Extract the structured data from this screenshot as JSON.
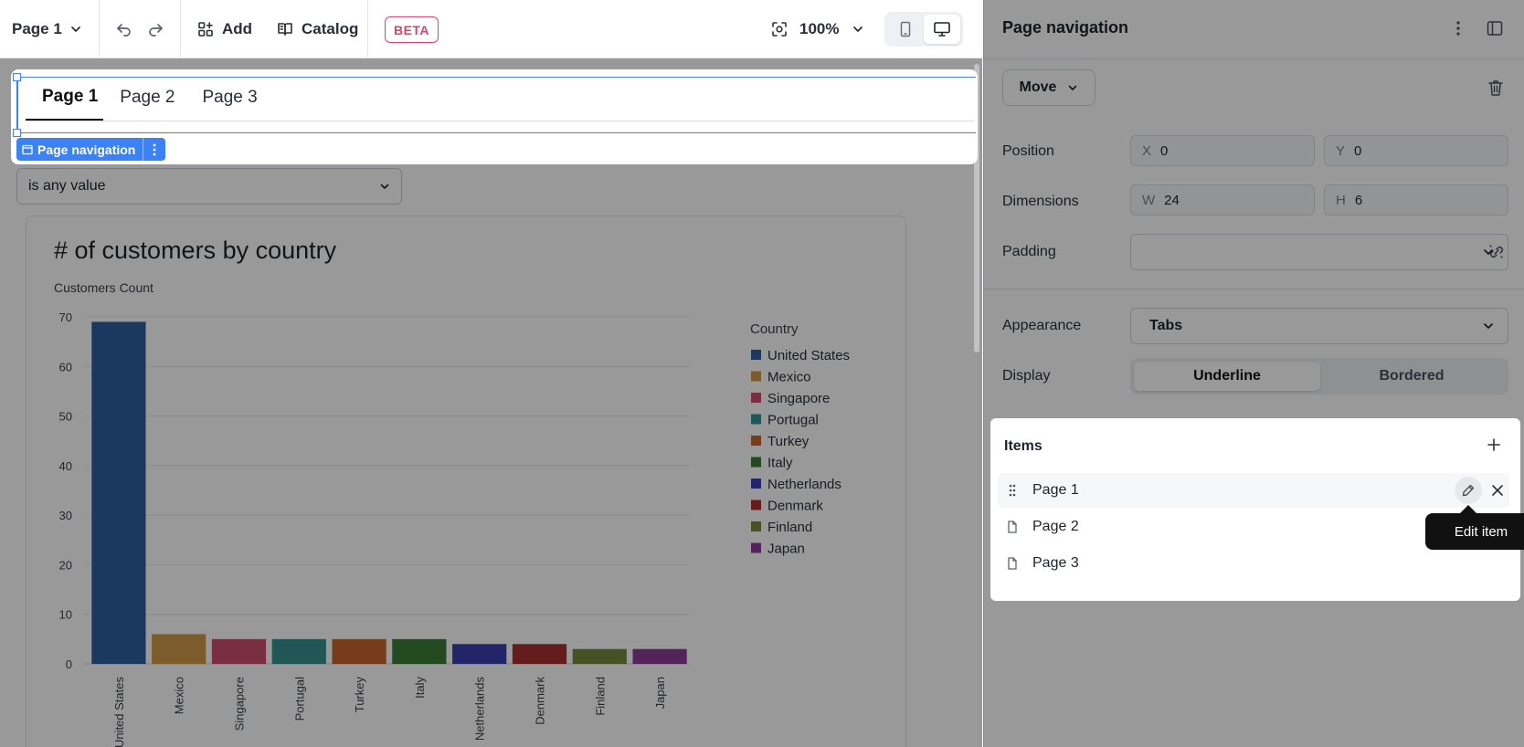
{
  "toolbar": {
    "page_selector": "Page 1",
    "add_label": "Add",
    "catalog_label": "Catalog",
    "beta_badge": "BETA",
    "zoom": "100%"
  },
  "canvas": {
    "page_nav": {
      "tabs": [
        "Page 1",
        "Page 2",
        "Page 3"
      ],
      "active_tab": "Page 1",
      "component_label": "Page navigation"
    },
    "filter": {
      "value": "is any value"
    },
    "chart_card": {
      "title": "# of customers by country"
    }
  },
  "chart_data": {
    "type": "bar",
    "title": "# of customers by country",
    "ylabel": "Customers Count",
    "xlabel": "",
    "ylim": [
      0,
      70
    ],
    "yticks": [
      0,
      10,
      20,
      30,
      40,
      50,
      60,
      70
    ],
    "grid": true,
    "legend_title": "Country",
    "legend_position": "right",
    "categories": [
      "United States",
      "Mexico",
      "Singapore",
      "Portugal",
      "Turkey",
      "Italy",
      "Netherlands",
      "Denmark",
      "Finland",
      "Japan"
    ],
    "values": [
      69,
      6,
      5,
      5,
      5,
      5,
      4,
      4,
      3,
      3
    ],
    "colors": [
      "#2e5f9e",
      "#d09a4a",
      "#cc4d6f",
      "#37908f",
      "#c7652a",
      "#3a7a36",
      "#3a40b0",
      "#a8312d",
      "#76883c",
      "#8b3b94"
    ]
  },
  "panel": {
    "title": "Page navigation",
    "move_label": "Move",
    "position": {
      "label": "Position",
      "x_prefix": "X",
      "x": "0",
      "y_prefix": "Y",
      "y": "0"
    },
    "dimensions": {
      "label": "Dimensions",
      "w_prefix": "W",
      "w": "24",
      "h_prefix": "H",
      "h": "6"
    },
    "padding": {
      "label": "Padding",
      "value": ""
    },
    "appearance": {
      "label": "Appearance",
      "value": "Tabs"
    },
    "display": {
      "label": "Display",
      "options": [
        "Underline",
        "Bordered"
      ],
      "selected": "Underline"
    },
    "items": {
      "title": "Items",
      "list": [
        "Page 1",
        "Page 2",
        "Page 3"
      ],
      "tooltip": "Edit item"
    }
  }
}
